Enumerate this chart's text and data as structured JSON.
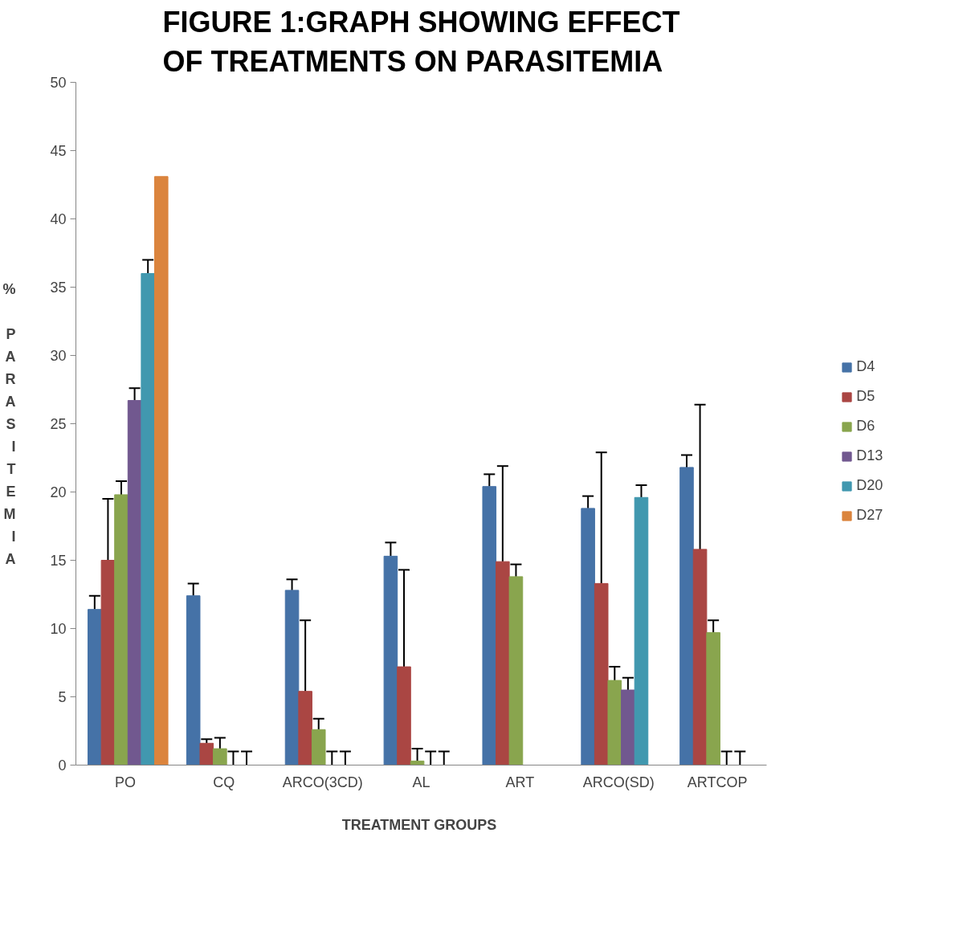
{
  "chart_data": {
    "type": "bar",
    "title": "FIGURE 1:GRAPH SHOWING EFFECT OF TREATMENTS ON PARASITEMIA",
    "xlabel": "TREATMENT  GROUPS",
    "ylabel": "% PARASITEMIA",
    "categories": [
      "PO",
      "CQ",
      "ARCO(3CD)",
      "AL",
      "ART",
      "ARCO(SD)",
      "ARTCOP"
    ],
    "series": [
      {
        "name": "D4",
        "color": "#4572a7",
        "values": [
          11.4,
          12.4,
          12.8,
          15.3,
          20.4,
          18.8,
          21.8
        ],
        "errors": [
          [
            11.4,
            12.4
          ],
          [
            12.4,
            13.3
          ],
          [
            12.8,
            13.6
          ],
          [
            15.3,
            16.3
          ],
          [
            20.4,
            21.3
          ],
          [
            18.8,
            19.7
          ],
          [
            21.8,
            22.7
          ]
        ]
      },
      {
        "name": "D5",
        "color": "#aa4643",
        "values": [
          15.0,
          1.6,
          5.4,
          7.2,
          14.9,
          13.3,
          15.8
        ],
        "errors": [
          [
            15.0,
            19.5
          ],
          [
            1.6,
            1.9
          ],
          [
            5.4,
            10.6
          ],
          [
            7.2,
            14.3
          ],
          [
            14.9,
            21.9
          ],
          [
            13.3,
            22.9
          ],
          [
            15.8,
            26.4
          ]
        ]
      },
      {
        "name": "D6",
        "color": "#89a54e",
        "values": [
          19.8,
          1.2,
          2.6,
          0.3,
          13.8,
          6.2,
          9.7
        ],
        "errors": [
          [
            19.8,
            20.8
          ],
          [
            1.2,
            2.0
          ],
          [
            2.6,
            3.4
          ],
          [
            0.3,
            1.2
          ],
          [
            13.8,
            14.7
          ],
          [
            6.2,
            7.2
          ],
          [
            9.7,
            10.6
          ]
        ]
      },
      {
        "name": "D13",
        "color": "#71588f",
        "values": [
          26.7,
          0,
          0,
          0,
          null,
          5.5,
          0
        ],
        "errors": [
          [
            26.7,
            27.6
          ],
          [
            0,
            1.0
          ],
          [
            0,
            1.0
          ],
          [
            0,
            1.0
          ],
          null,
          [
            5.5,
            6.4
          ],
          [
            0,
            1.0
          ]
        ]
      },
      {
        "name": "D20",
        "color": "#4198af",
        "values": [
          36.0,
          0,
          0,
          0,
          null,
          19.6,
          0
        ],
        "errors": [
          [
            36.0,
            37.0
          ],
          [
            0,
            1.0
          ],
          [
            0,
            1.0
          ],
          [
            0,
            1.0
          ],
          null,
          [
            19.6,
            20.5
          ],
          [
            0,
            1.0
          ]
        ]
      },
      {
        "name": "D27",
        "color": "#db843d",
        "values": [
          43.1,
          null,
          null,
          null,
          null,
          null,
          null
        ]
      }
    ],
    "ylim": [
      0,
      50
    ],
    "yticks": [
      0,
      5,
      10,
      15,
      20,
      25,
      30,
      35,
      40,
      45,
      50
    ],
    "grid": false,
    "legend": "right"
  }
}
